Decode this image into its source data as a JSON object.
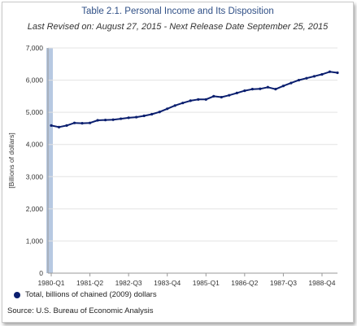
{
  "chart_data": {
    "type": "line",
    "title": "Table 2.1. Personal Income and Its Disposition",
    "subtitle": "Last Revised on: August 27, 2015 - Next Release Date September 25, 2015",
    "ylabel": "[Billions of dollars]",
    "xlabel": "",
    "ylim": [
      0,
      7000
    ],
    "yticks": [
      0,
      1000,
      2000,
      3000,
      4000,
      5000,
      6000,
      7000
    ],
    "ytick_labels": [
      "0",
      "1,000",
      "2,000",
      "3,000",
      "4,000",
      "5,000",
      "6,000",
      "7,000"
    ],
    "xtick_labels": [
      "1980-Q1",
      "1981-Q2",
      "1982-Q3",
      "1983-Q4",
      "1985-Q1",
      "1986-Q2",
      "1987-Q3",
      "1988-Q4"
    ],
    "grid": true,
    "legend_position": "bottom",
    "series_color": "#0b1f6f",
    "series": [
      {
        "name": "Total, billions of chained (2009) dollars",
        "x": [
          "1980-Q1",
          "1980-Q2",
          "1980-Q3",
          "1980-Q4",
          "1981-Q1",
          "1981-Q2",
          "1981-Q3",
          "1981-Q4",
          "1982-Q1",
          "1982-Q2",
          "1982-Q3",
          "1982-Q4",
          "1983-Q1",
          "1983-Q2",
          "1983-Q3",
          "1983-Q4",
          "1984-Q1",
          "1984-Q2",
          "1984-Q3",
          "1984-Q4",
          "1985-Q1",
          "1985-Q2",
          "1985-Q3",
          "1985-Q4",
          "1986-Q1",
          "1986-Q2",
          "1986-Q3",
          "1986-Q4",
          "1987-Q1",
          "1987-Q2",
          "1987-Q3",
          "1987-Q4",
          "1988-Q1",
          "1988-Q2",
          "1988-Q3",
          "1988-Q4",
          "1989-Q1",
          "1989-Q2"
        ],
        "values": [
          4590,
          4540,
          4590,
          4670,
          4660,
          4670,
          4750,
          4760,
          4770,
          4800,
          4830,
          4850,
          4890,
          4940,
          5010,
          5110,
          5210,
          5290,
          5360,
          5400,
          5400,
          5500,
          5470,
          5530,
          5600,
          5670,
          5720,
          5730,
          5780,
          5720,
          5820,
          5910,
          6000,
          6060,
          6120,
          6180,
          6260,
          6230
        ]
      }
    ]
  },
  "legend": {
    "label": "Total, billions of chained (2009) dollars"
  },
  "source": "Source: U.S. Bureau of Economic  Analysis"
}
